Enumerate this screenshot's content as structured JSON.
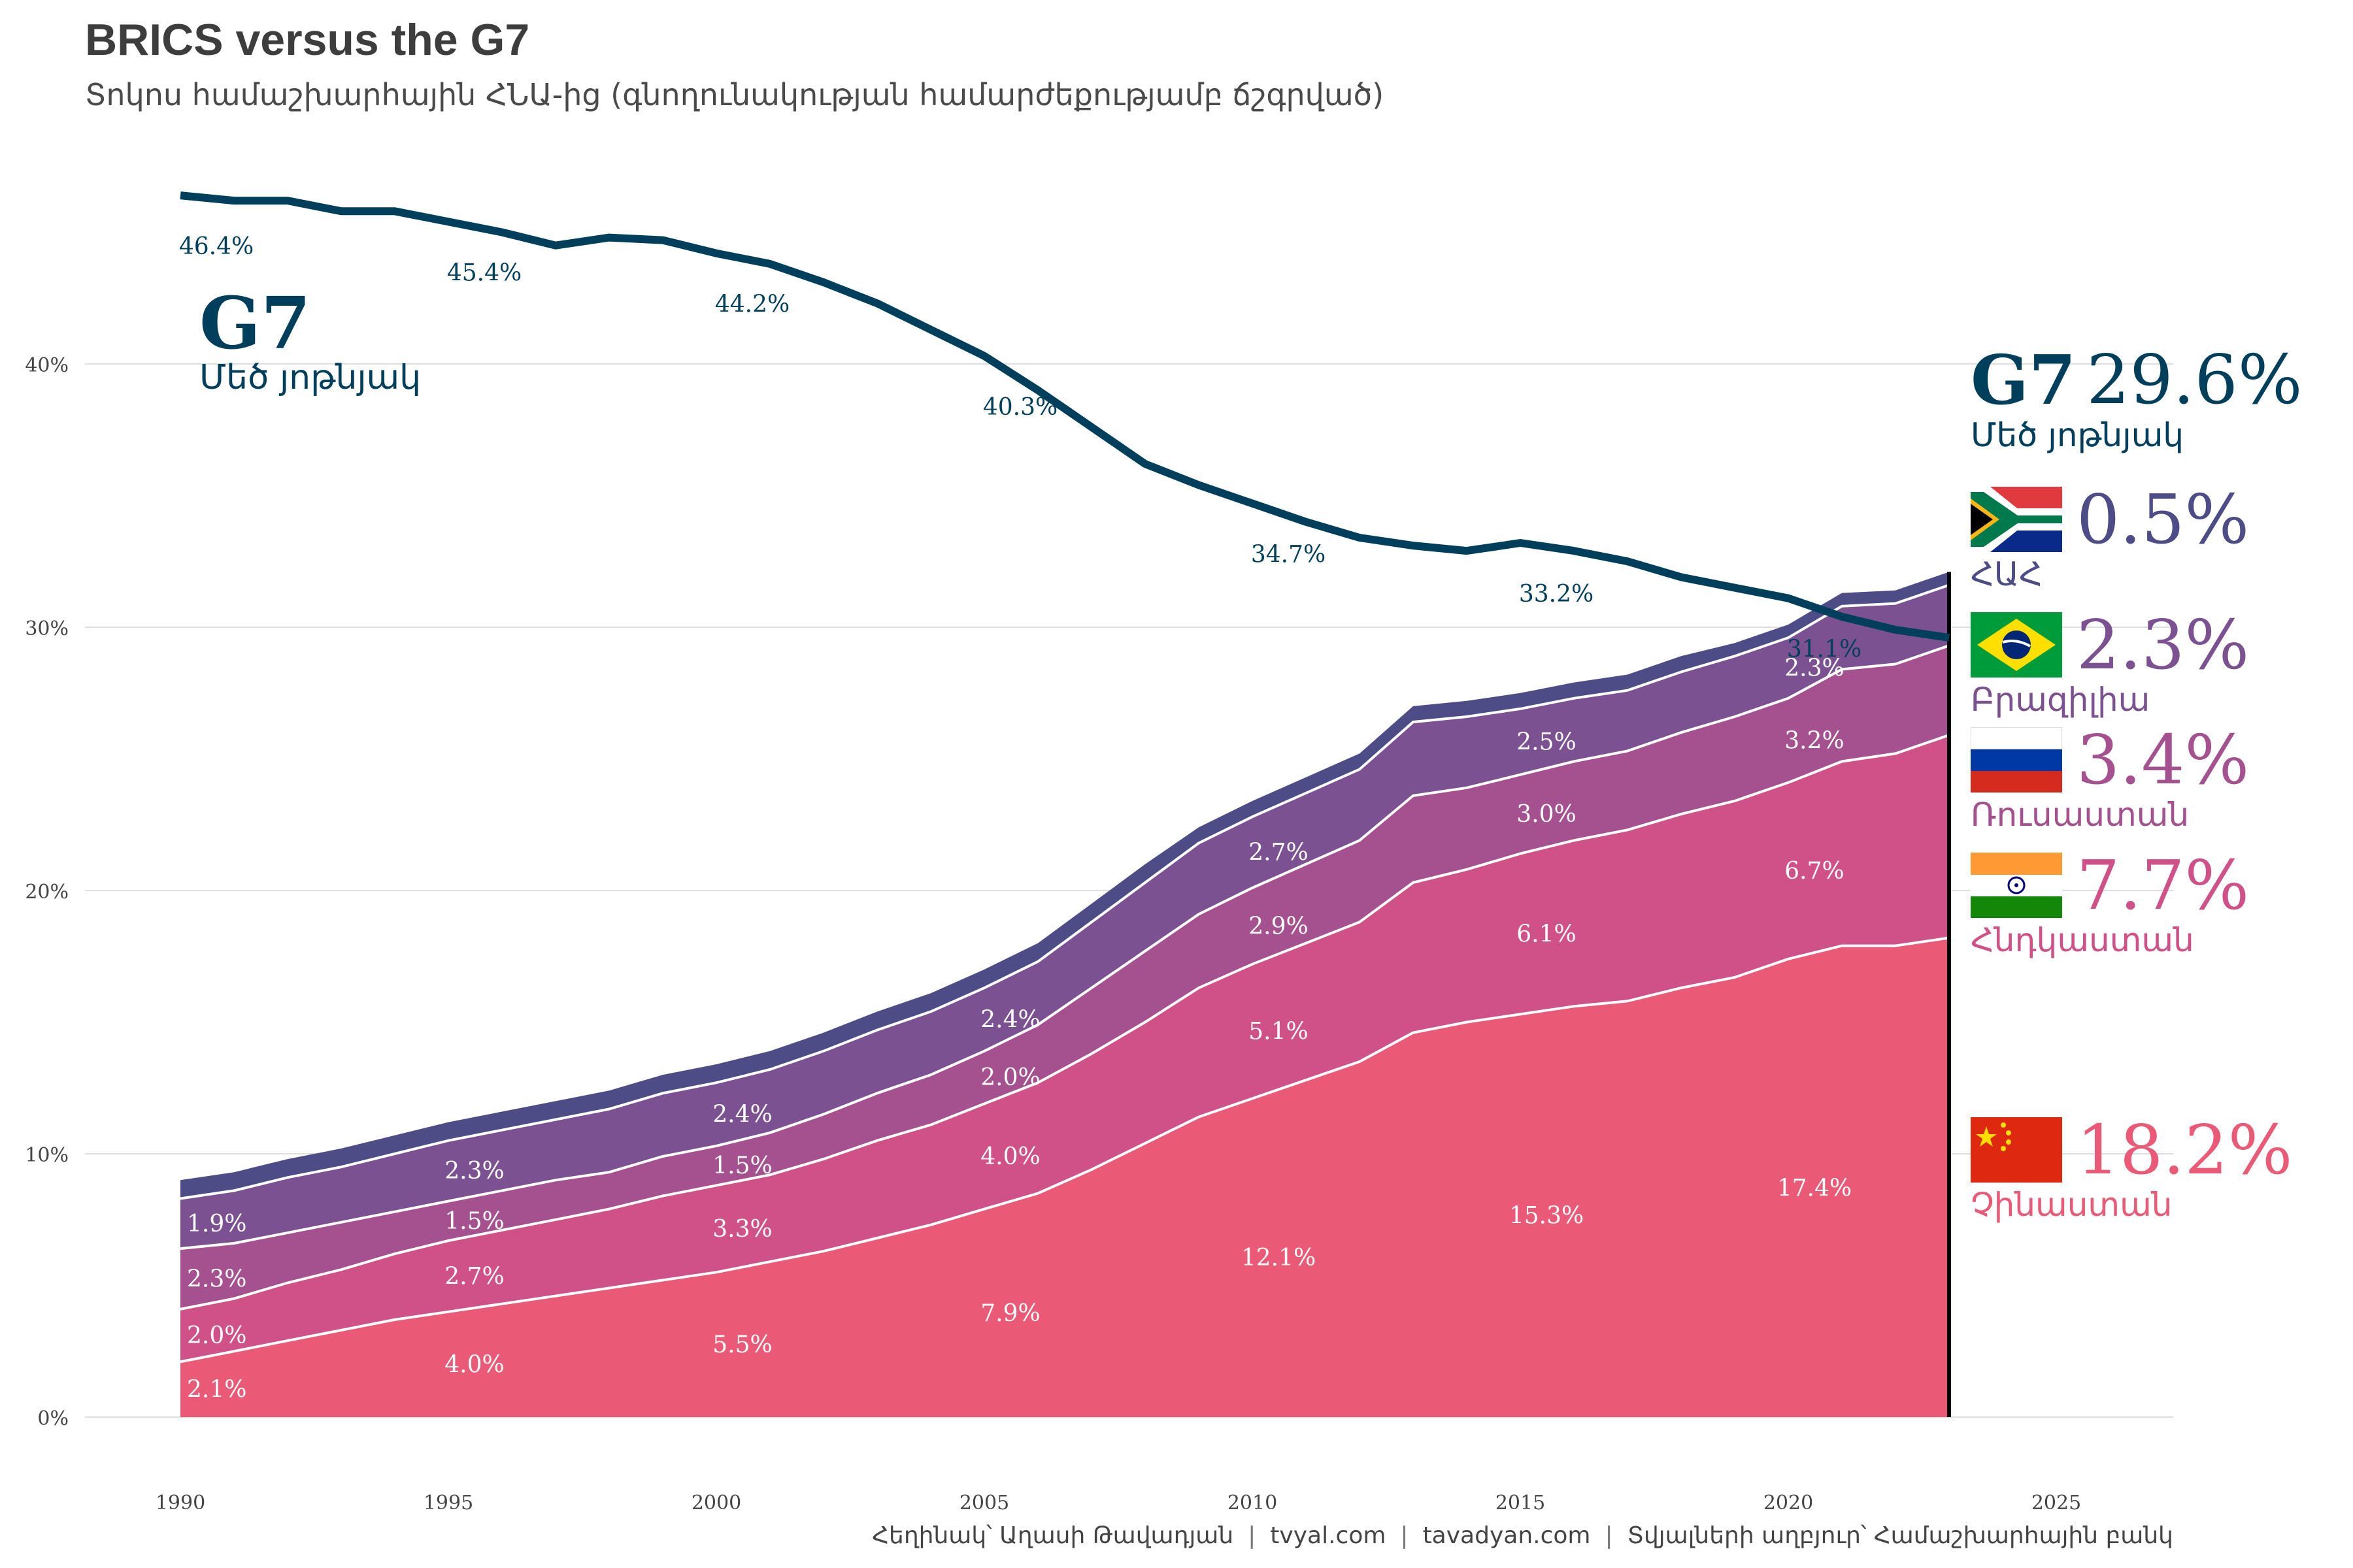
{
  "title": "BRICS versus the G7",
  "subtitle": "Տոկոս համաշխարհային ՀՆԱ-ից (գնողունակության համարժեքությամբ ճշգրված)",
  "caption": {
    "author": "Հեղինակ՝ Աղասի Թավադյան",
    "site1": "tvyal.com",
    "site2": "tavadyan.com",
    "source": "Տվյալների աղբյուր՝ Համաշխարհային բանկ",
    "separator": "|"
  },
  "g7_label": {
    "name": "G7",
    "subname": "Մեծ յոթնյակ"
  },
  "legend": {
    "g7": {
      "name": "G7",
      "value": "29.6%",
      "subname": "Մեծ յոթնյակ",
      "color": "#003f5c"
    },
    "items": [
      {
        "flag": "south-africa-flag",
        "value": "0.5%",
        "name": "ՀԱՀ",
        "color": "#4d4c87"
      },
      {
        "flag": "brazil-flag",
        "value": "2.3%",
        "name": "Բրազիլիա",
        "color": "#7b5191"
      },
      {
        "flag": "russia-flag",
        "value": "3.4%",
        "name": "Ռուսաստան",
        "color": "#a5508f"
      },
      {
        "flag": "india-flag",
        "value": "7.7%",
        "name": "Հնդկաստան",
        "color": "#d05088"
      },
      {
        "flag": "china-flag",
        "value": "18.2%",
        "name": "Չինաստան",
        "color": "#ea5975"
      }
    ]
  },
  "chart_data": {
    "type": "area",
    "title": "BRICS versus the G7",
    "subtitle": "Տոկոս համաշխարհային ՀՆԱ-ից (գնողունակության համարժեքությամբ ճշգրված)",
    "xlabel": "",
    "ylabel": "",
    "xlim": [
      1988.5,
      2027.5
    ],
    "ylim": [
      0,
      47
    ],
    "grid": true,
    "x_ticks": [
      "1990",
      "1995",
      "2000",
      "2005",
      "2010",
      "2015",
      "2020",
      "2025"
    ],
    "x_tick_values": [
      1990,
      1995,
      2000,
      2005,
      2010,
      2015,
      2020,
      2025
    ],
    "y_ticks": [
      "0%",
      "10%",
      "20%",
      "30%",
      "40%"
    ],
    "y_tick_values": [
      0,
      10,
      20,
      30,
      40
    ],
    "x": [
      1990,
      1991,
      1992,
      1993,
      1994,
      1995,
      1996,
      1997,
      1998,
      1999,
      2000,
      2001,
      2002,
      2003,
      2004,
      2005,
      2006,
      2007,
      2008,
      2009,
      2010,
      2011,
      2012,
      2013,
      2014,
      2015,
      2016,
      2017,
      2018,
      2019,
      2020,
      2021,
      2022,
      2023
    ],
    "stack_order_bottom_to_top": [
      "China",
      "India",
      "Russia",
      "Brazil",
      "South Africa"
    ],
    "series": [
      {
        "name": "China",
        "label": "Չինաստան",
        "color": "#ea5975",
        "values": [
          2.1,
          2.5,
          2.9,
          3.3,
          3.7,
          4.0,
          4.3,
          4.6,
          4.9,
          5.2,
          5.5,
          5.9,
          6.3,
          6.8,
          7.3,
          7.9,
          8.5,
          9.4,
          10.4,
          11.4,
          12.1,
          12.8,
          13.5,
          14.6,
          15.0,
          15.3,
          15.6,
          15.8,
          16.3,
          16.7,
          17.4,
          17.9,
          17.9,
          18.2
        ]
      },
      {
        "name": "India",
        "label": "Հնդկաստան",
        "color": "#d05088",
        "values": [
          2.0,
          2.0,
          2.2,
          2.3,
          2.5,
          2.7,
          2.8,
          2.9,
          3.0,
          3.2,
          3.3,
          3.3,
          3.5,
          3.7,
          3.8,
          4.0,
          4.2,
          4.4,
          4.6,
          4.9,
          5.1,
          5.2,
          5.3,
          5.7,
          5.8,
          6.1,
          6.3,
          6.5,
          6.6,
          6.7,
          6.7,
          7.0,
          7.3,
          7.7
        ]
      },
      {
        "name": "Russia",
        "label": "Ռուսաստան",
        "color": "#a5508f",
        "values": [
          2.3,
          2.1,
          1.9,
          1.8,
          1.6,
          1.5,
          1.5,
          1.5,
          1.4,
          1.5,
          1.5,
          1.6,
          1.7,
          1.8,
          1.9,
          2.0,
          2.2,
          2.5,
          2.7,
          2.8,
          2.9,
          3.0,
          3.1,
          3.3,
          3.1,
          3.0,
          3.0,
          3.0,
          3.1,
          3.2,
          3.2,
          3.5,
          3.4,
          3.4
        ]
      },
      {
        "name": "Brazil",
        "label": "Բրազիլիա",
        "color": "#7b5191",
        "values": [
          1.9,
          2.0,
          2.1,
          2.1,
          2.2,
          2.3,
          2.3,
          2.3,
          2.4,
          2.4,
          2.4,
          2.4,
          2.4,
          2.4,
          2.4,
          2.4,
          2.4,
          2.5,
          2.6,
          2.7,
          2.7,
          2.7,
          2.7,
          2.8,
          2.7,
          2.5,
          2.4,
          2.3,
          2.3,
          2.3,
          2.3,
          2.4,
          2.3,
          2.3
        ]
      },
      {
        "name": "South Africa",
        "label": "ՀԱՀ",
        "color": "#4d4c87",
        "values": [
          0.7,
          0.7,
          0.7,
          0.7,
          0.7,
          0.7,
          0.7,
          0.7,
          0.7,
          0.7,
          0.7,
          0.7,
          0.7,
          0.7,
          0.7,
          0.7,
          0.7,
          0.7,
          0.7,
          0.6,
          0.6,
          0.6,
          0.6,
          0.6,
          0.6,
          0.6,
          0.6,
          0.6,
          0.6,
          0.5,
          0.5,
          0.5,
          0.5,
          0.5
        ]
      }
    ],
    "line_series": {
      "name": "G7",
      "label": "Մեծ յոթնյակ",
      "color": "#003f5c",
      "values": [
        46.4,
        46.2,
        46.2,
        45.8,
        45.8,
        45.4,
        45.0,
        44.5,
        44.8,
        44.7,
        44.2,
        43.8,
        43.1,
        42.3,
        41.3,
        40.3,
        39.0,
        37.6,
        36.2,
        35.4,
        34.7,
        34.0,
        33.4,
        33.1,
        32.9,
        33.2,
        32.9,
        32.5,
        31.9,
        31.5,
        31.1,
        30.4,
        29.9,
        29.6
      ]
    },
    "line_labels": [
      {
        "year": 1990,
        "text": "46.4%"
      },
      {
        "year": 1995,
        "text": "45.4%"
      },
      {
        "year": 2000,
        "text": "44.2%"
      },
      {
        "year": 2005,
        "text": "40.3%"
      },
      {
        "year": 2010,
        "text": "34.7%"
      },
      {
        "year": 2015,
        "text": "33.2%"
      },
      {
        "year": 2020,
        "text": "31.1%"
      }
    ],
    "area_labels": [
      {
        "year": 1990,
        "series": "China",
        "text": "2.1%"
      },
      {
        "year": 1990,
        "series": "India",
        "text": "2.0%"
      },
      {
        "year": 1990,
        "series": "Russia",
        "text": "2.3%"
      },
      {
        "year": 1990,
        "series": "Brazil",
        "text": "1.9%"
      },
      {
        "year": 1995,
        "series": "China",
        "text": "4.0%"
      },
      {
        "year": 1995,
        "series": "India",
        "text": "2.7%"
      },
      {
        "year": 1995,
        "series": "Russia",
        "text": "1.5%"
      },
      {
        "year": 1995,
        "series": "Brazil",
        "text": "2.3%"
      },
      {
        "year": 2000,
        "series": "China",
        "text": "5.5%"
      },
      {
        "year": 2000,
        "series": "India",
        "text": "3.3%"
      },
      {
        "year": 2000,
        "series": "Russia",
        "text": "1.5%"
      },
      {
        "year": 2000,
        "series": "Brazil",
        "text": "2.4%"
      },
      {
        "year": 2005,
        "series": "China",
        "text": "7.9%"
      },
      {
        "year": 2005,
        "series": "India",
        "text": "4.0%"
      },
      {
        "year": 2005,
        "series": "Russia",
        "text": "2.0%"
      },
      {
        "year": 2005,
        "series": "Brazil",
        "text": "2.4%"
      },
      {
        "year": 2010,
        "series": "China",
        "text": "12.1%"
      },
      {
        "year": 2010,
        "series": "India",
        "text": "5.1%"
      },
      {
        "year": 2010,
        "series": "Russia",
        "text": "2.9%"
      },
      {
        "year": 2010,
        "series": "Brazil",
        "text": "2.7%"
      },
      {
        "year": 2015,
        "series": "China",
        "text": "15.3%"
      },
      {
        "year": 2015,
        "series": "India",
        "text": "6.1%"
      },
      {
        "year": 2015,
        "series": "Russia",
        "text": "3.0%"
      },
      {
        "year": 2015,
        "series": "Brazil",
        "text": "2.5%"
      },
      {
        "year": 2020,
        "series": "China",
        "text": "17.4%"
      },
      {
        "year": 2020,
        "series": "India",
        "text": "6.7%"
      },
      {
        "year": 2020,
        "series": "Russia",
        "text": "3.2%"
      },
      {
        "year": 2020,
        "series": "Brazil",
        "text": "2.3%"
      }
    ],
    "end_marker_year": 2023
  }
}
